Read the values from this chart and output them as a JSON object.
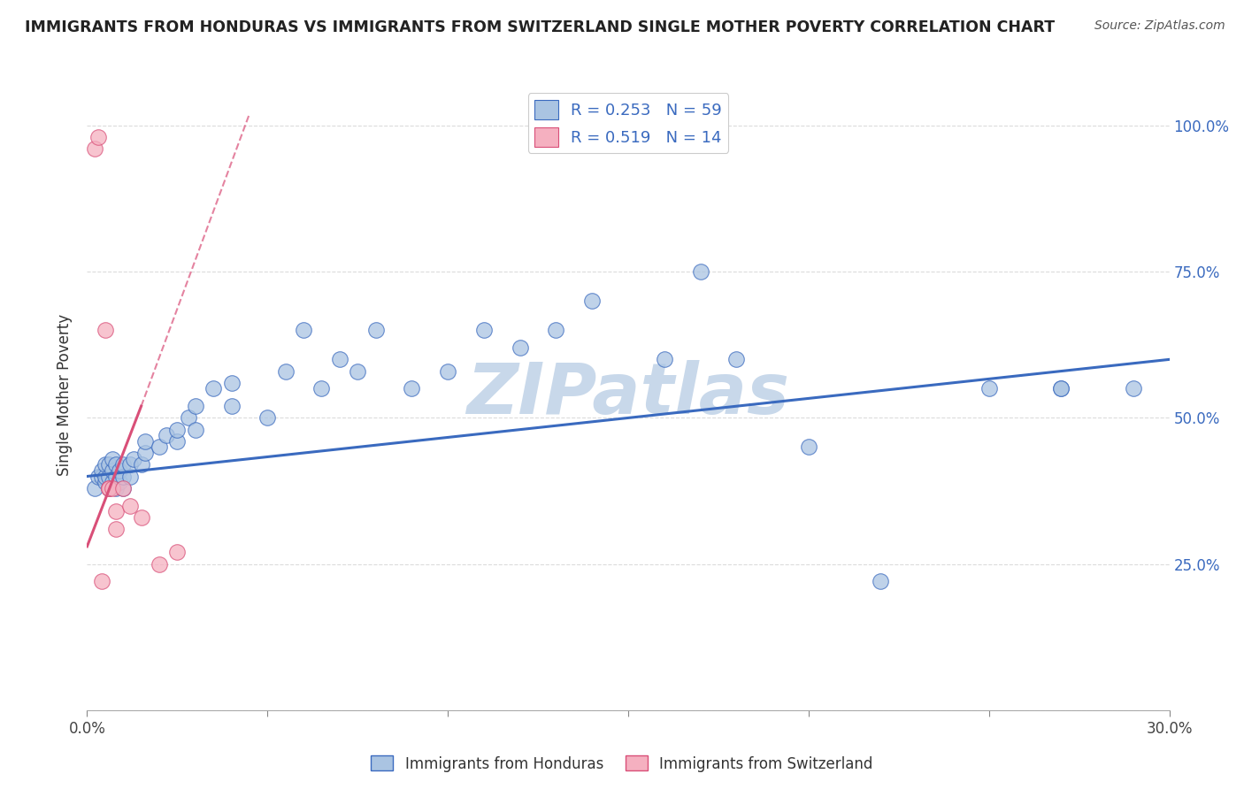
{
  "title": "IMMIGRANTS FROM HONDURAS VS IMMIGRANTS FROM SWITZERLAND SINGLE MOTHER POVERTY CORRELATION CHART",
  "source": "Source: ZipAtlas.com",
  "ylabel": "Single Mother Poverty",
  "legend_label_1": "Immigrants from Honduras",
  "legend_label_2": "Immigrants from Switzerland",
  "R1": 0.253,
  "N1": 59,
  "R2": 0.519,
  "N2": 14,
  "color1": "#aac4e2",
  "color2": "#f5b0c0",
  "trendline1_color": "#3a6abf",
  "trendline2_color": "#d94f78",
  "xlim": [
    0.0,
    0.3
  ],
  "ylim": [
    0.0,
    1.08
  ],
  "xticks": [
    0.0,
    0.05,
    0.1,
    0.15,
    0.2,
    0.25,
    0.3
  ],
  "yticks_right": [
    0.0,
    0.25,
    0.5,
    0.75,
    1.0
  ],
  "ytick_labels_right": [
    "",
    "25.0%",
    "50.0%",
    "75.0%",
    "100.0%"
  ],
  "blue_scatter_x": [
    0.002,
    0.003,
    0.004,
    0.004,
    0.005,
    0.005,
    0.005,
    0.006,
    0.006,
    0.006,
    0.007,
    0.007,
    0.007,
    0.008,
    0.008,
    0.008,
    0.009,
    0.009,
    0.01,
    0.01,
    0.01,
    0.012,
    0.012,
    0.013,
    0.015,
    0.016,
    0.016,
    0.02,
    0.022,
    0.025,
    0.025,
    0.028,
    0.03,
    0.03,
    0.035,
    0.04,
    0.04,
    0.05,
    0.055,
    0.06,
    0.065,
    0.07,
    0.075,
    0.08,
    0.09,
    0.1,
    0.11,
    0.12,
    0.13,
    0.14,
    0.16,
    0.17,
    0.18,
    0.2,
    0.22,
    0.25,
    0.27,
    0.27,
    0.29
  ],
  "blue_scatter_y": [
    0.38,
    0.4,
    0.4,
    0.41,
    0.39,
    0.4,
    0.42,
    0.38,
    0.4,
    0.42,
    0.39,
    0.41,
    0.43,
    0.38,
    0.4,
    0.42,
    0.39,
    0.41,
    0.38,
    0.4,
    0.42,
    0.4,
    0.42,
    0.43,
    0.42,
    0.44,
    0.46,
    0.45,
    0.47,
    0.46,
    0.48,
    0.5,
    0.48,
    0.52,
    0.55,
    0.52,
    0.56,
    0.5,
    0.58,
    0.65,
    0.55,
    0.6,
    0.58,
    0.65,
    0.55,
    0.58,
    0.65,
    0.62,
    0.65,
    0.7,
    0.6,
    0.75,
    0.6,
    0.45,
    0.22,
    0.55,
    0.55,
    0.55,
    0.55
  ],
  "pink_scatter_x": [
    0.002,
    0.003,
    0.004,
    0.005,
    0.006,
    0.006,
    0.007,
    0.008,
    0.008,
    0.01,
    0.012,
    0.015,
    0.02,
    0.025
  ],
  "pink_scatter_y": [
    0.96,
    0.98,
    0.22,
    0.65,
    0.38,
    0.38,
    0.38,
    0.31,
    0.34,
    0.38,
    0.35,
    0.33,
    0.25,
    0.27
  ],
  "watermark": "ZIPatlas",
  "watermark_color": "#c8d8ea",
  "background_color": "#ffffff",
  "grid_color": "#d8d8d8",
  "blue_trendline_x0": 0.0,
  "blue_trendline_y0": 0.4,
  "blue_trendline_x1": 0.3,
  "blue_trendline_y1": 0.6,
  "pink_trendline_x0_solid": 0.0,
  "pink_trendline_y0_solid": 0.28,
  "pink_trendline_x1_solid": 0.015,
  "pink_trendline_y1_solid": 0.52,
  "pink_trendline_x0_dash": 0.015,
  "pink_trendline_y0_dash": 0.52,
  "pink_trendline_x1_dash": 0.045,
  "pink_trendline_y1_dash": 1.02
}
